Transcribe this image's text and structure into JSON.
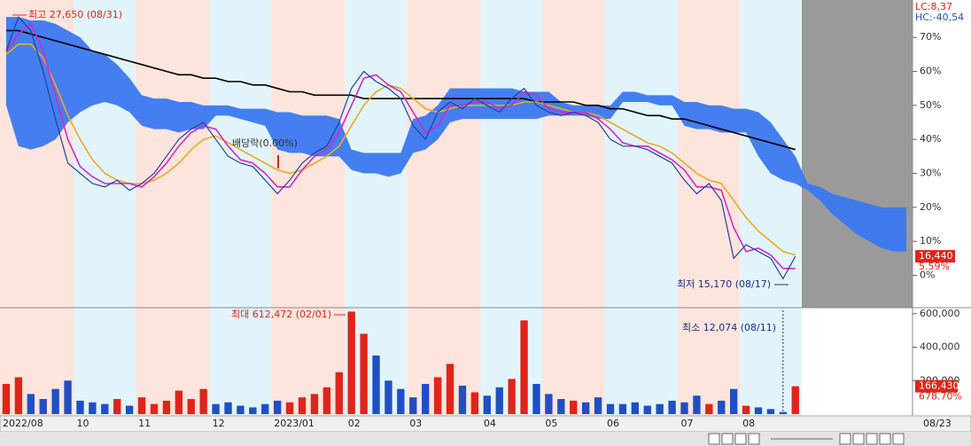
{
  "chart_data": [
    {
      "type": "line",
      "categories": [
        "2022/08",
        null,
        null,
        null,
        null,
        null,
        "10",
        null,
        null,
        null,
        null,
        "11",
        null,
        null,
        null,
        null,
        null,
        "12",
        null,
        null,
        null,
        null,
        "2023/01",
        null,
        null,
        null,
        null,
        null,
        "02",
        null,
        null,
        null,
        null,
        "03",
        null,
        null,
        null,
        null,
        null,
        "04",
        null,
        null,
        null,
        null,
        "05",
        null,
        null,
        null,
        null,
        "06",
        null,
        null,
        null,
        null,
        null,
        "07",
        null,
        null,
        null,
        null,
        "08",
        null,
        null,
        null,
        null,
        null,
        null,
        null,
        null,
        null,
        null,
        null,
        null,
        null
      ],
      "ylim": [
        -9,
        81
      ],
      "yticks": [
        {
          "value": 0,
          "label": "0%"
        },
        {
          "value": 10,
          "label": "10%"
        },
        {
          "value": 20,
          "label": "20%"
        },
        {
          "value": 30,
          "label": "30%"
        },
        {
          "value": 40,
          "label": "40%"
        },
        {
          "value": 50,
          "label": "50%"
        },
        {
          "value": 60,
          "label": "60%"
        },
        {
          "value": 70,
          "label": "70%"
        }
      ],
      "cloud": {
        "color": "#3a78f0",
        "upper": [
          76,
          76,
          75,
          75,
          74,
          72,
          70,
          66,
          65,
          62,
          58,
          53,
          52,
          52,
          51,
          51,
          50,
          50,
          50,
          49,
          49,
          49,
          48,
          48,
          47,
          47,
          47,
          46,
          37,
          36,
          36,
          36,
          36,
          46,
          47,
          50,
          55,
          55,
          55,
          55,
          55,
          55,
          54,
          54,
          54,
          51,
          50,
          50,
          50,
          50,
          54,
          54,
          53,
          53,
          53,
          51,
          51,
          50,
          50,
          49,
          49,
          48,
          45,
          40,
          35,
          27,
          26,
          24,
          23,
          22,
          21,
          20,
          20,
          20
        ],
        "lower": [
          50,
          38,
          37,
          38,
          40,
          45,
          48,
          50,
          51,
          50,
          48,
          44,
          43,
          43,
          42,
          43,
          43,
          47,
          47,
          46,
          45,
          44,
          37,
          36,
          36,
          35,
          35,
          35,
          31,
          30,
          30,
          29,
          30,
          36,
          37,
          40,
          45,
          46,
          46,
          46,
          46,
          46,
          46,
          46,
          47,
          47,
          47,
          47,
          46,
          46,
          51,
          51,
          51,
          50,
          50,
          44,
          43,
          43,
          42,
          42,
          42,
          35,
          30,
          28,
          27,
          25,
          22,
          18,
          15,
          12,
          10,
          8,
          7,
          7
        ]
      },
      "series": [
        {
          "color": "#000000",
          "values": [
            72,
            72,
            71,
            70,
            69,
            68,
            67,
            66,
            65,
            64,
            63,
            62,
            61,
            60,
            59,
            59,
            58,
            58,
            57,
            57,
            56,
            56,
            55,
            54,
            54,
            53,
            53,
            53,
            53,
            52,
            52,
            52,
            52,
            52,
            52,
            52,
            52,
            52,
            52,
            52,
            52,
            52,
            52,
            51,
            51,
            51,
            51,
            50,
            50,
            49,
            49,
            48,
            47,
            47,
            46,
            46,
            45,
            44,
            43,
            42,
            41,
            40,
            39,
            38,
            37,
            null,
            null,
            null,
            null,
            null,
            null,
            null,
            null,
            null
          ]
        },
        {
          "color": "#f0a81c",
          "values": [
            65,
            68,
            68,
            64,
            56,
            47,
            40,
            34,
            30,
            28,
            27,
            27,
            28,
            30,
            33,
            37,
            40,
            41,
            39,
            37,
            35,
            33,
            31,
            30,
            31,
            33,
            35,
            38,
            44,
            50,
            54,
            56,
            55,
            52,
            49,
            48,
            49,
            50,
            50,
            50,
            50,
            50,
            51,
            51,
            50,
            49,
            48,
            48,
            47,
            45,
            43,
            41,
            39,
            38,
            36,
            33,
            30,
            28,
            27,
            22,
            17,
            13,
            10,
            7,
            6,
            null,
            null,
            null,
            null,
            null,
            null,
            null,
            null,
            null
          ]
        },
        {
          "color": "#d428c8",
          "values": [
            66,
            71,
            74,
            66,
            53,
            40,
            32,
            29,
            27,
            27,
            27,
            26,
            29,
            33,
            38,
            42,
            44,
            43,
            38,
            34,
            33,
            30,
            26,
            26,
            31,
            35,
            37,
            42,
            50,
            58,
            59,
            56,
            54,
            48,
            42,
            44,
            50,
            50,
            51,
            51,
            49,
            50,
            54,
            53,
            49,
            48,
            48,
            48,
            46,
            43,
            39,
            38,
            38,
            36,
            34,
            31,
            26,
            26,
            25,
            14,
            7,
            8,
            6,
            2,
            2,
            null,
            null,
            null,
            null,
            null,
            null,
            null,
            null,
            null
          ]
        },
        {
          "color": "#2a3f9a",
          "values": [
            66,
            76,
            72,
            60,
            46,
            33,
            30,
            27,
            26,
            28,
            25,
            27,
            30,
            35,
            40,
            43,
            45,
            40,
            35,
            33,
            32,
            28,
            24,
            28,
            33,
            36,
            38,
            45,
            55,
            60,
            57,
            55,
            52,
            44,
            40,
            48,
            51,
            49,
            52,
            50,
            48,
            52,
            55,
            50,
            48,
            47,
            48,
            47,
            45,
            40,
            38,
            38,
            37,
            35,
            33,
            28,
            24,
            27,
            22,
            5,
            9,
            7,
            5,
            -1,
            5.59,
            null,
            null,
            null,
            null,
            null,
            null,
            null,
            null,
            null
          ]
        }
      ],
      "high_label": "최고 27,650 (08/31)",
      "low_label": "최저 15,170 (08/17)",
      "ex_div_label": "배당락(0.00%)",
      "last_price_label": "16,440",
      "last_change_label": "5.59%",
      "lc_label": "LC:8,37",
      "hc_label": "HC:-40,54",
      "cursor_date": "08/23"
    },
    {
      "type": "bar",
      "ylim": [
        0,
        620000
      ],
      "yticks": [
        {
          "value": 600000,
          "label": "600,000"
        },
        {
          "value": 400000,
          "label": "400,000"
        },
        {
          "value": 200000,
          "label": "200,000"
        }
      ],
      "values": [
        180000,
        220000,
        120000,
        90000,
        150000,
        200000,
        80000,
        70000,
        60000,
        90000,
        50000,
        100000,
        60000,
        80000,
        140000,
        90000,
        150000,
        60000,
        70000,
        50000,
        40000,
        60000,
        80000,
        70000,
        100000,
        120000,
        160000,
        250000,
        612472,
        480000,
        350000,
        200000,
        150000,
        100000,
        180000,
        220000,
        300000,
        170000,
        130000,
        110000,
        160000,
        210000,
        560000,
        180000,
        120000,
        90000,
        80000,
        70000,
        100000,
        60000,
        60000,
        70000,
        50000,
        60000,
        80000,
        70000,
        110000,
        60000,
        80000,
        150000,
        50000,
        40000,
        30000,
        12074,
        166430
      ],
      "colors": [
        "#e0241b",
        "#e0241b",
        "#1f4fc4",
        "#1f4fc4",
        "#1f4fc4",
        "#1f4fc4",
        "#1f4fc4",
        "#1f4fc4",
        "#1f4fc4",
        "#e0241b",
        "#1f4fc4",
        "#e0241b",
        "#e0241b",
        "#e0241b",
        "#e0241b",
        "#e0241b",
        "#e0241b",
        "#1f4fc4",
        "#1f4fc4",
        "#1f4fc4",
        "#1f4fc4",
        "#1f4fc4",
        "#1f4fc4",
        "#e0241b",
        "#e0241b",
        "#e0241b",
        "#e0241b",
        "#e0241b",
        "#e0241b",
        "#e0241b",
        "#1f4fc4",
        "#1f4fc4",
        "#1f4fc4",
        "#1f4fc4",
        "#1f4fc4",
        "#e0241b",
        "#e0241b",
        "#1f4fc4",
        "#e0241b",
        "#1f4fc4",
        "#1f4fc4",
        "#e0241b",
        "#e0241b",
        "#1f4fc4",
        "#1f4fc4",
        "#1f4fc4",
        "#e0241b",
        "#1f4fc4",
        "#1f4fc4",
        "#1f4fc4",
        "#1f4fc4",
        "#1f4fc4",
        "#1f4fc4",
        "#1f4fc4",
        "#1f4fc4",
        "#1f4fc4",
        "#1f4fc4",
        "#e0241b",
        "#1f4fc4",
        "#1f4fc4",
        "#e0241b",
        "#1f4fc4",
        "#1f4fc4",
        "#1f4fc4",
        "#e0241b"
      ],
      "max_label": "최대 612,472 (02/01)",
      "min_label": "최소 12,074 (08/11)",
      "last_volume_label": "166,430",
      "last_ratio_label": "678.70%"
    }
  ]
}
